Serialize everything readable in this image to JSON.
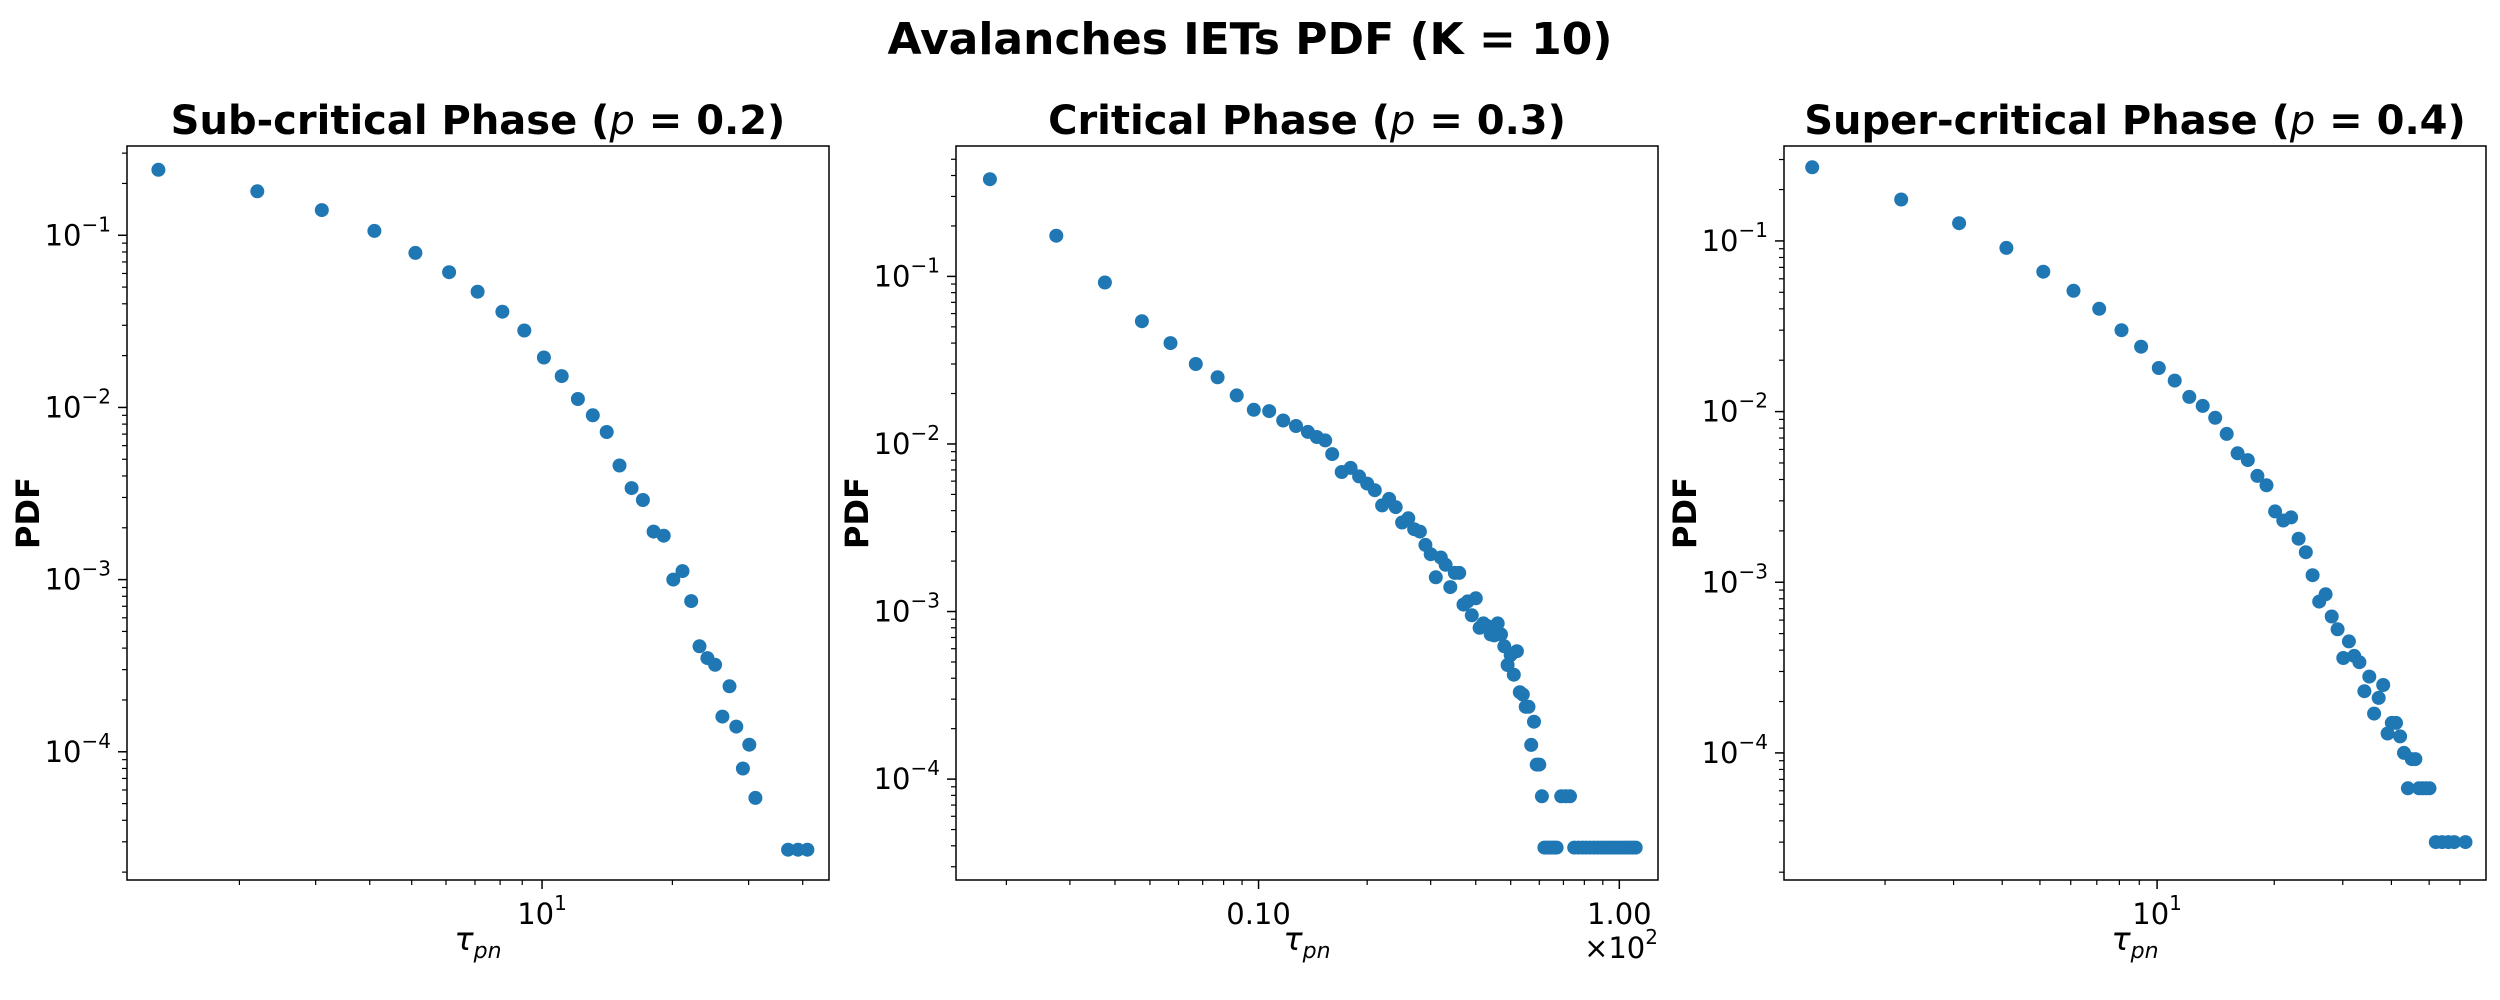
{
  "chart_data": [
    {
      "type": "scatter",
      "figure_title": "Avalanches IETs PDF (K = 10)",
      "title": "Sub-critical Phase (p = 0.2)",
      "title_prefix": "Sub-critical Phase (",
      "title_var": "p",
      "title_suffix": " = 0.2)",
      "xlabel_symbol": "τ",
      "xlabel_sub": "pn",
      "ylabel": "PDF",
      "xscale": "log",
      "yscale": "log",
      "xlim": [
        1.1,
        46
      ],
      "ylim": [
        1.8e-05,
        0.33
      ],
      "xticks_major": [
        {
          "value": 10,
          "base": "10",
          "exp": "1"
        }
      ],
      "xticks_minor": [
        2,
        3,
        4,
        5,
        6,
        7,
        8,
        9,
        20,
        30,
        40
      ],
      "yticks_major": [
        {
          "value": 0.1,
          "base": "10",
          "exp": "−1"
        },
        {
          "value": 0.01,
          "base": "10",
          "exp": "−2"
        },
        {
          "value": 0.001,
          "base": "10",
          "exp": "−3"
        },
        {
          "value": 0.0001,
          "base": "10",
          "exp": "−4"
        }
      ],
      "color": "#1f77b4",
      "x": [
        1.3,
        2.2,
        3.1,
        4.1,
        5.1,
        6.1,
        7.1,
        8.1,
        9.1,
        10.1,
        11.1,
        12.1,
        13.1,
        14.1,
        15.1,
        16.1,
        17.1,
        18.1,
        19.1,
        20.1,
        21.1,
        22.1,
        23.1,
        24.1,
        25.1,
        26.1,
        27.1,
        28.1,
        29.1,
        30.1,
        31.1,
        37,
        39,
        41
      ],
      "y": [
        0.24,
        0.18,
        0.14,
        0.106,
        0.079,
        0.061,
        0.047,
        0.036,
        0.028,
        0.0195,
        0.0152,
        0.0112,
        0.009,
        0.0072,
        0.0046,
        0.0034,
        0.0029,
        0.0019,
        0.0018,
        0.001,
        0.00112,
        0.00075,
        0.00041,
        0.00035,
        0.00032,
        0.00016,
        0.00024,
        0.00014,
        8e-05,
        0.00011,
        5.4e-05,
        2.7e-05,
        2.7e-05,
        2.7e-05
      ]
    },
    {
      "type": "scatter",
      "title": "Critical Phase (p = 0.3)",
      "title_prefix": "Critical Phase (",
      "title_var": "p",
      "title_suffix": " = 0.3)",
      "xlabel_symbol": "τ",
      "xlabel_sub": "pn",
      "ylabel": "PDF",
      "xscale": "log",
      "yscale": "log",
      "xlim": [
        0.0145,
        1.28
      ],
      "ylim": [
        2.5e-05,
        0.6
      ],
      "xticks_major": [
        {
          "value": 0.1,
          "label": "0.10"
        },
        {
          "value": 1.0,
          "label": "1.00"
        }
      ],
      "xticks_minor": [
        0.02,
        0.03,
        0.04,
        0.05,
        0.06,
        0.07,
        0.08,
        0.09,
        0.2,
        0.3,
        0.4,
        0.5,
        0.6,
        0.7,
        0.8,
        0.9
      ],
      "x_offset_text": {
        "prefix": "×10",
        "exp": "2"
      },
      "yticks_major": [
        {
          "value": 0.1,
          "base": "10",
          "exp": "−1"
        },
        {
          "value": 0.01,
          "base": "10",
          "exp": "−2"
        },
        {
          "value": 0.001,
          "base": "10",
          "exp": "−3"
        },
        {
          "value": 0.0001,
          "base": "10",
          "exp": "−4"
        }
      ],
      "color": "#1f77b4",
      "x": [
        0.018,
        0.0275,
        0.0375,
        0.0475,
        0.057,
        0.067,
        0.077,
        0.087,
        0.097,
        0.107,
        0.117,
        0.127,
        0.137,
        0.145,
        0.153,
        0.16,
        0.17,
        0.18,
        0.19,
        0.2,
        0.21,
        0.22,
        0.23,
        0.24,
        0.25,
        0.26,
        0.27,
        0.28,
        0.29,
        0.3,
        0.31,
        0.32,
        0.33,
        0.34,
        0.35,
        0.36,
        0.37,
        0.38,
        0.39,
        0.4,
        0.41,
        0.42,
        0.43,
        0.44,
        0.45,
        0.46,
        0.47,
        0.48,
        0.49,
        0.5,
        0.51,
        0.52,
        0.53,
        0.54,
        0.55,
        0.56,
        0.57,
        0.58,
        0.59,
        0.6,
        0.61,
        0.62,
        0.63,
        0.64,
        0.65,
        0.66,
        0.67,
        0.69,
        0.71,
        0.73,
        0.75,
        0.77,
        0.79,
        0.81,
        0.83,
        0.85,
        0.87,
        0.89,
        0.91,
        0.93,
        0.95,
        0.97,
        0.99,
        1.01,
        1.03,
        1.05,
        1.07,
        1.09,
        1.11
      ],
      "y": [
        0.38,
        0.175,
        0.092,
        0.054,
        0.04,
        0.03,
        0.025,
        0.0195,
        0.016,
        0.0157,
        0.0138,
        0.0128,
        0.0118,
        0.011,
        0.0105,
        0.0087,
        0.0068,
        0.0072,
        0.0064,
        0.0058,
        0.0053,
        0.0043,
        0.0047,
        0.0042,
        0.0034,
        0.0036,
        0.0031,
        0.003,
        0.0025,
        0.0022,
        0.0016,
        0.0021,
        0.0019,
        0.0014,
        0.0017,
        0.0017,
        0.0011,
        0.00115,
        0.00095,
        0.0012,
        0.0008,
        0.00085,
        0.00082,
        0.00073,
        0.00072,
        0.00085,
        0.00073,
        0.00062,
        0.00048,
        0.00055,
        0.00042,
        0.00058,
        0.00033,
        0.00032,
        0.00027,
        0.00027,
        0.00016,
        0.00022,
        0.000122,
        0.000122,
        7.9e-05,
        3.9e-05,
        3.9e-05,
        3.9e-05,
        3.9e-05,
        3.9e-05,
        3.9e-05,
        7.9e-05,
        7.9e-05,
        7.9e-05,
        3.9e-05,
        3.9e-05,
        3.9e-05,
        3.9e-05,
        3.9e-05,
        3.9e-05,
        3.9e-05,
        3.9e-05,
        3.9e-05,
        3.9e-05,
        3.9e-05,
        3.9e-05,
        3.9e-05,
        3.9e-05,
        3.9e-05,
        3.9e-05,
        3.9e-05,
        3.9e-05,
        3.9e-05
      ]
    },
    {
      "type": "scatter",
      "title": "Super-critical Phase (p = 0.4)",
      "title_prefix": "Super-critical Phase (",
      "title_var": "p",
      "title_suffix": " = 0.4)",
      "xlabel_symbol": "τ",
      "xlabel_sub": "pn",
      "ylabel": "PDF",
      "xscale": "log",
      "yscale": "log",
      "xlim": [
        1.1,
        70
      ],
      "ylim": [
        1.8e-05,
        0.36
      ],
      "xticks_major": [
        {
          "value": 10,
          "base": "10",
          "exp": "1"
        }
      ],
      "xticks_minor": [
        2,
        3,
        4,
        5,
        6,
        7,
        8,
        9,
        20,
        30,
        40,
        50,
        60
      ],
      "yticks_major": [
        {
          "value": 0.1,
          "base": "10",
          "exp": "−1"
        },
        {
          "value": 0.01,
          "base": "10",
          "exp": "−2"
        },
        {
          "value": 0.001,
          "base": "10",
          "exp": "−3"
        },
        {
          "value": 0.0001,
          "base": "10",
          "exp": "−4"
        }
      ],
      "color": "#1f77b4",
      "x": [
        1.3,
        2.2,
        3.1,
        4.1,
        5.1,
        6.1,
        7.1,
        8.1,
        9.1,
        10.1,
        11.1,
        12.1,
        13.1,
        14.1,
        15.1,
        16.1,
        17.1,
        18.1,
        19.1,
        20.1,
        21.1,
        22.1,
        23.1,
        24.1,
        25.1,
        26.1,
        27.1,
        28.1,
        29.1,
        30.1,
        31.1,
        32.1,
        33.1,
        34.1,
        35.1,
        36.1,
        37.1,
        38.1,
        39.1,
        40.1,
        41.1,
        42.1,
        43.1,
        44.1,
        45.1,
        46.1,
        47.1,
        48.1,
        49.1,
        50.1,
        52,
        54,
        56,
        58,
        62
      ],
      "y": [
        0.27,
        0.175,
        0.127,
        0.091,
        0.066,
        0.051,
        0.04,
        0.03,
        0.024,
        0.018,
        0.0152,
        0.0122,
        0.0108,
        0.0092,
        0.0074,
        0.0057,
        0.0052,
        0.0042,
        0.0037,
        0.0026,
        0.0023,
        0.0024,
        0.0018,
        0.0015,
        0.0011,
        0.00077,
        0.00085,
        0.00063,
        0.00053,
        0.00036,
        0.00045,
        0.00037,
        0.00034,
        0.00023,
        0.00028,
        0.00017,
        0.00021,
        0.00025,
        0.00013,
        0.00015,
        0.00015,
        0.000125,
        0.0001,
        6.2e-05,
        9.2e-05,
        9.2e-05,
        6.2e-05,
        6.2e-05,
        6.2e-05,
        6.2e-05,
        3e-05,
        3e-05,
        3e-05,
        3e-05,
        3e-05
      ]
    }
  ]
}
